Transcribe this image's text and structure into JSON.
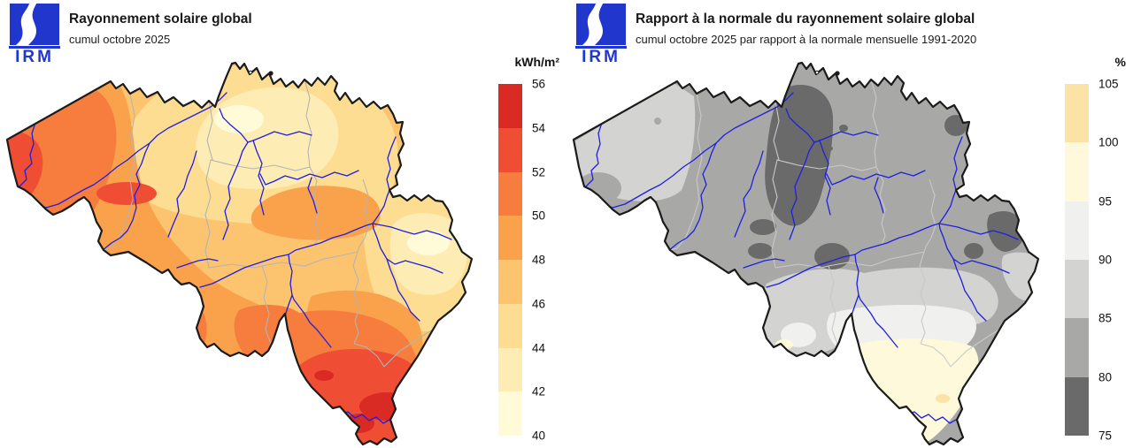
{
  "panels": [
    {
      "id": "radiation",
      "logo": {
        "text": "IRM",
        "color": "#2136cc"
      },
      "title": "Rayonnement solaire global",
      "subtitle": "cumul octobre 2025",
      "legend": {
        "unit": "kWh/m²",
        "ticks": [
          "56",
          "54",
          "52",
          "50",
          "48",
          "46",
          "44",
          "42",
          "40"
        ],
        "bins": [
          {
            "from": 54,
            "to": 56,
            "color": "#da2a24"
          },
          {
            "from": 52,
            "to": 54,
            "color": "#f04d35"
          },
          {
            "from": 50,
            "to": 52,
            "color": "#f67d3d"
          },
          {
            "from": 48,
            "to": 50,
            "color": "#faa14b"
          },
          {
            "from": 46,
            "to": 48,
            "color": "#fcc46f"
          },
          {
            "from": 44,
            "to": 46,
            "color": "#fddd92"
          },
          {
            "from": 42,
            "to": 44,
            "color": "#feecb5"
          },
          {
            "from": 40,
            "to": 42,
            "color": "#fffbd9"
          }
        ]
      },
      "map": {
        "region": "Belgique",
        "border_color": "#1b1b1b",
        "river_color": "#2020dd",
        "province_border_color": "#b4b4b4"
      }
    },
    {
      "id": "anomaly",
      "logo": {
        "text": "IRM",
        "color": "#2136cc"
      },
      "title": "Rapport à la normale du rayonnement solaire global",
      "subtitle": "cumul octobre 2025 par rapport à la normale mensuelle 1991-2020",
      "legend": {
        "unit": "%",
        "ticks": [
          "105",
          "100",
          "95",
          "90",
          "85",
          "80",
          "75"
        ],
        "bins": [
          {
            "from": 100,
            "to": 105,
            "color": "#fbe2a7"
          },
          {
            "from": 95,
            "to": 100,
            "color": "#fdf9da"
          },
          {
            "from": 90,
            "to": 95,
            "color": "#f0f0ee"
          },
          {
            "from": 85,
            "to": 90,
            "color": "#d3d3d2"
          },
          {
            "from": 80,
            "to": 85,
            "color": "#a8a8a7"
          },
          {
            "from": 75,
            "to": 80,
            "color": "#6a6a6a"
          }
        ]
      },
      "map": {
        "region": "Belgique",
        "border_color": "#1b1b1b",
        "river_color": "#2020dd",
        "province_border_color": "#c9c9c9"
      }
    }
  ]
}
